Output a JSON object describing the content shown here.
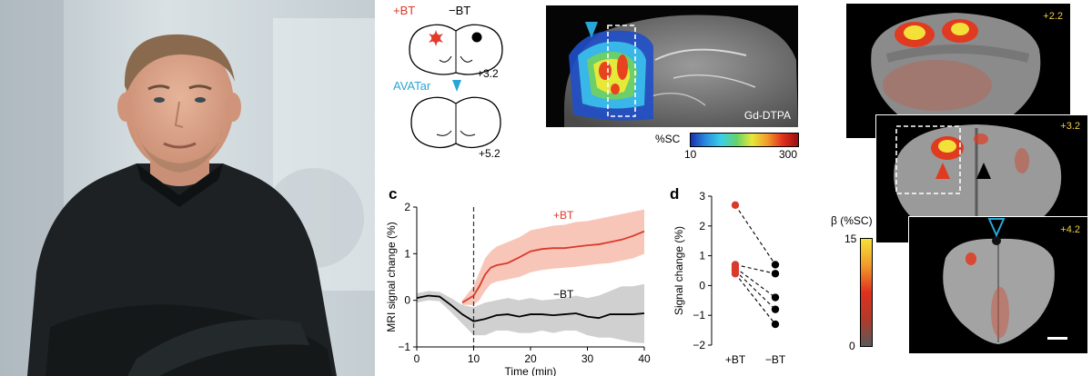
{
  "schematic": {
    "label_plus_bt": "+BT",
    "label_minus_bt": "−BT",
    "label_avatar": "AVATar",
    "coord_top": "+3.2",
    "coord_bottom": "+5.2"
  },
  "sagittal": {
    "contrast_label": "Gd-DTPA",
    "colorbar_title": "%SC",
    "colorbar_min": "10",
    "colorbar_max": "300"
  },
  "coronal": {
    "slice_1": "+2.2",
    "slice_2": "+3.2",
    "slice_3": "+4.2",
    "colorbar_title": "β (%SC)",
    "colorbar_max": "15",
    "colorbar_min": "0"
  },
  "colors": {
    "plus_bt": "#d93a2b",
    "minus_bt": "#000000",
    "avatar": "#2aa6d6",
    "ci_plus": "#f4b3a0",
    "ci_minus": "#c8c8c8"
  },
  "chart_data": [
    {
      "panel_label": "c",
      "type": "line",
      "xlabel": "Time (min)",
      "ylabel": "MRI signal change (%)",
      "xlim": [
        0,
        40
      ],
      "ylim": [
        -1,
        2
      ],
      "xticks": [
        "0",
        "10",
        "20",
        "30",
        "40"
      ],
      "yticks": [
        "2",
        "1",
        "0",
        "−1"
      ],
      "stimulus_onset": 10,
      "series": [
        {
          "name": "+BT",
          "x": [
            8,
            10,
            11,
            12,
            13,
            14,
            16,
            18,
            20,
            22,
            24,
            26,
            28,
            30,
            32,
            34,
            36,
            38,
            40
          ],
          "values": [
            -0.05,
            0.1,
            0.3,
            0.55,
            0.7,
            0.75,
            0.8,
            0.92,
            1.05,
            1.1,
            1.12,
            1.12,
            1.15,
            1.18,
            1.2,
            1.25,
            1.3,
            1.38,
            1.48
          ],
          "upper": [
            0.0,
            0.3,
            0.6,
            0.9,
            1.05,
            1.15,
            1.25,
            1.35,
            1.5,
            1.55,
            1.6,
            1.62,
            1.68,
            1.7,
            1.75,
            1.8,
            1.85,
            1.9,
            1.95
          ],
          "lower": [
            -0.1,
            -0.1,
            0.0,
            0.2,
            0.35,
            0.4,
            0.45,
            0.5,
            0.6,
            0.65,
            0.68,
            0.7,
            0.72,
            0.75,
            0.78,
            0.8,
            0.85,
            0.9,
            1.0
          ]
        },
        {
          "name": "−BT",
          "x": [
            0,
            2,
            4,
            6,
            8,
            10,
            12,
            14,
            16,
            18,
            20,
            22,
            24,
            26,
            28,
            30,
            32,
            34,
            36,
            38,
            40
          ],
          "values": [
            0.05,
            0.1,
            0.08,
            -0.1,
            -0.3,
            -0.45,
            -0.4,
            -0.32,
            -0.3,
            -0.35,
            -0.3,
            -0.3,
            -0.32,
            -0.3,
            -0.28,
            -0.35,
            -0.38,
            -0.3,
            -0.3,
            -0.3,
            -0.28
          ],
          "upper": [
            0.15,
            0.2,
            0.18,
            0.05,
            -0.1,
            -0.15,
            -0.05,
            0.0,
            0.05,
            0.0,
            0.05,
            0.0,
            0.02,
            0.05,
            0.1,
            0.05,
            0.1,
            0.2,
            0.3,
            0.3,
            0.35
          ],
          "lower": [
            -0.05,
            0.0,
            -0.02,
            -0.25,
            -0.5,
            -0.75,
            -0.75,
            -0.65,
            -0.65,
            -0.7,
            -0.7,
            -0.65,
            -0.7,
            -0.65,
            -0.65,
            -0.75,
            -0.8,
            -0.8,
            -0.85,
            -0.9,
            -0.92
          ]
        }
      ]
    },
    {
      "panel_label": "d",
      "type": "scatter",
      "ylabel": "Signal change (%)",
      "ylim": [
        -2,
        3
      ],
      "yticks": [
        "3",
        "2",
        "1",
        "0",
        "−1",
        "−2"
      ],
      "categories": [
        "+BT",
        "−BT"
      ],
      "pairs": [
        [
          2.7,
          0.7
        ],
        [
          0.7,
          0.4
        ],
        [
          0.6,
          -0.4
        ],
        [
          0.5,
          -0.8
        ],
        [
          0.4,
          -1.3
        ]
      ]
    }
  ]
}
